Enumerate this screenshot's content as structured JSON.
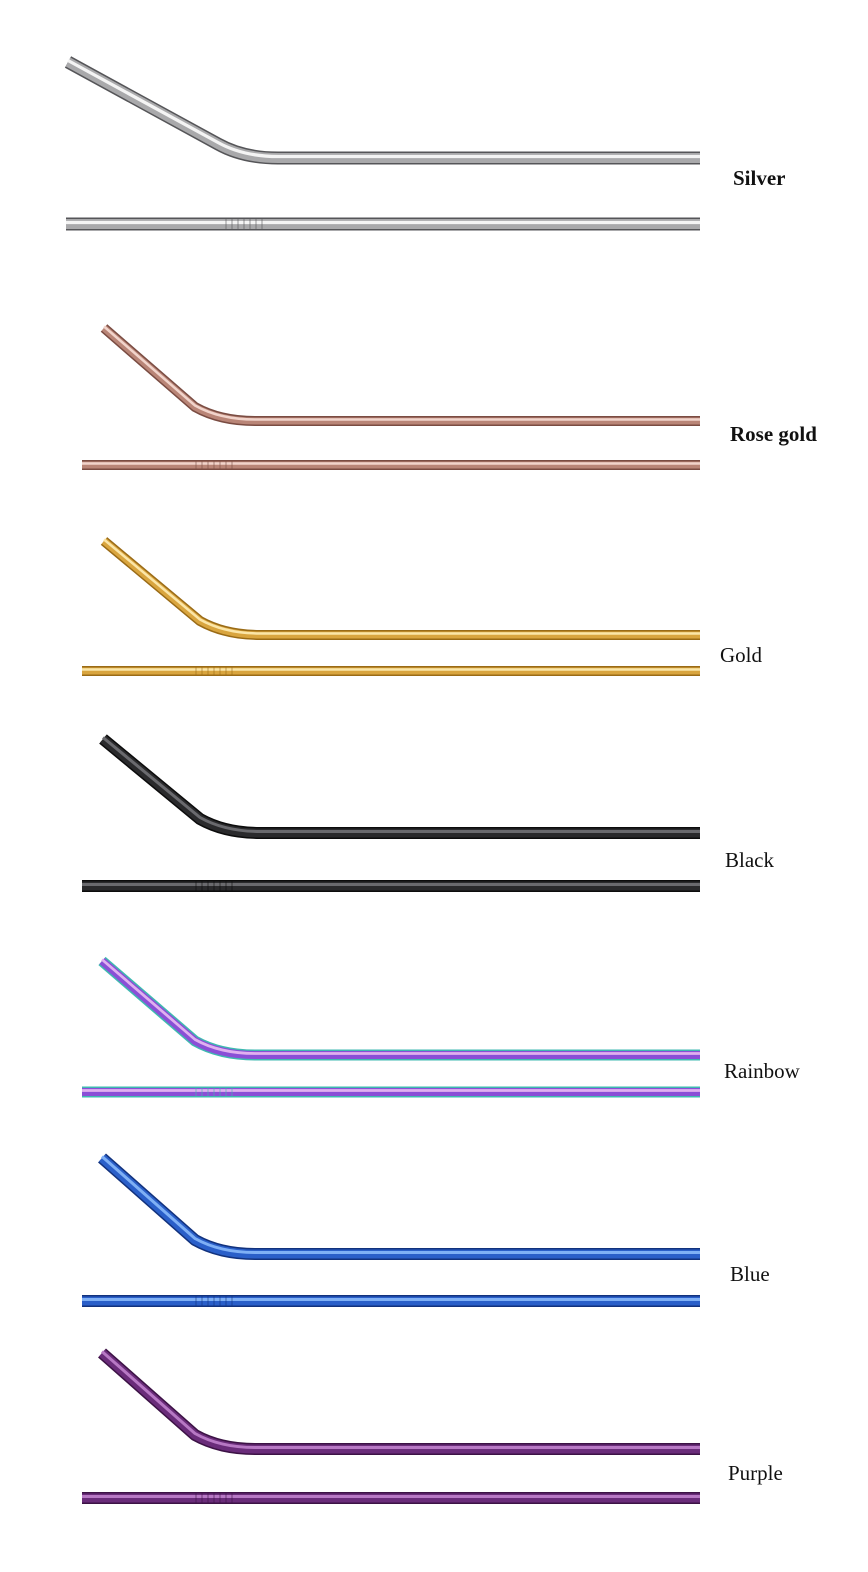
{
  "variants": [
    {
      "label": "Silver",
      "bold": true,
      "color": "#a9a9ab",
      "highlight": "#f4f4f4",
      "shade": "#555558"
    },
    {
      "label": "Rose gold",
      "bold": true,
      "color": "#b98577",
      "highlight": "#f1d4cb",
      "shade": "#7a4c42"
    },
    {
      "label": "Gold",
      "bold": false,
      "color": "#d9a53f",
      "highlight": "#fbe6a8",
      "shade": "#9a6b16"
    },
    {
      "label": "Black",
      "bold": false,
      "color": "#2a2a2c",
      "highlight": "#6a6a6e",
      "shade": "#0c0c0c"
    },
    {
      "label": "Rainbow",
      "bold": false,
      "color": "#8a4fd6",
      "highlight": "#e0b0f0",
      "shade": "#3fb9b0"
    },
    {
      "label": "Blue",
      "bold": false,
      "color": "#2a5fc9",
      "highlight": "#7fb0f5",
      "shade": "#12327d"
    },
    {
      "label": "Purple",
      "bold": false,
      "color": "#6a2c7a",
      "highlight": "#b778c4",
      "shade": "#3c1245"
    }
  ]
}
